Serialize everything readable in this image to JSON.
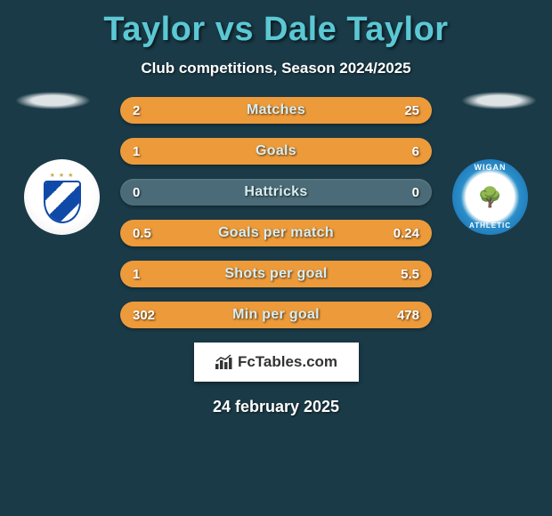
{
  "title": "Taylor vs Dale Taylor",
  "subtitle": "Club competitions, Season 2024/2025",
  "date": "24 february 2025",
  "logo_text": "FcTables.com",
  "left_badge": {
    "name": "huddersfield-badge"
  },
  "right_badge": {
    "name": "wigan-badge",
    "top_text": "WIGAN",
    "bottom_text": "ATHLETIC"
  },
  "colors": {
    "background": "#1a3a47",
    "title": "#5bc8d4",
    "bar_bg": "#4a6b77",
    "bar_fill": "#ed9a3a",
    "text": "#ffffff"
  },
  "bars": [
    {
      "label": "Matches",
      "left": "2",
      "right": "25",
      "left_pct": 7,
      "right_pct": 93
    },
    {
      "label": "Goals",
      "left": "1",
      "right": "6",
      "left_pct": 14,
      "right_pct": 86
    },
    {
      "label": "Hattricks",
      "left": "0",
      "right": "0",
      "left_pct": 0,
      "right_pct": 0
    },
    {
      "label": "Goals per match",
      "left": "0.5",
      "right": "0.24",
      "left_pct": 68,
      "right_pct": 32
    },
    {
      "label": "Shots per goal",
      "left": "1",
      "right": "5.5",
      "left_pct": 15,
      "right_pct": 85
    },
    {
      "label": "Min per goal",
      "left": "302",
      "right": "478",
      "left_pct": 39,
      "right_pct": 61
    }
  ]
}
